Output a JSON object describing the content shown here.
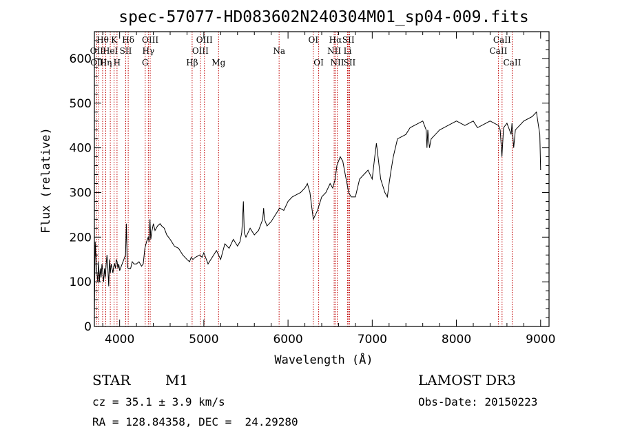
{
  "chart_data": {
    "type": "line",
    "title": "spec-57077-HD083602N240304M01_sp04-009.fits",
    "xlabel": "Wavelength (Å)",
    "ylabel": "Flux (relative)",
    "xlim": [
      3700,
      9100
    ],
    "ylim": [
      0,
      660
    ],
    "xticks": [
      4000,
      5000,
      6000,
      7000,
      8000,
      9000
    ],
    "yticks": [
      0,
      100,
      200,
      300,
      400,
      500,
      600
    ],
    "grid": false,
    "series": [
      {
        "values_x": [
          3700,
          3710,
          3720,
          3730,
          3740,
          3750,
          3760,
          3770,
          3780,
          3790,
          3800,
          3810,
          3820,
          3830,
          3840,
          3850,
          3860,
          3870,
          3880,
          3890,
          3900,
          3910,
          3920,
          3930,
          3940,
          3950,
          3960,
          3970,
          3980,
          3990,
          4000,
          4030,
          4050,
          4070,
          4080,
          4090,
          4100,
          4130,
          4150,
          4170,
          4200,
          4230,
          4260,
          4280,
          4300,
          4320,
          4340,
          4350,
          4360,
          4370,
          4380,
          4400,
          4420,
          4450,
          4480,
          4500,
          4530,
          4560,
          4600,
          4650,
          4700,
          4750,
          4800,
          4830,
          4850,
          4870,
          4900,
          4950,
          4980,
          5000,
          5050,
          5100,
          5150,
          5200,
          5250,
          5300,
          5350,
          5400,
          5430,
          5450,
          5460,
          5470,
          5480,
          5500,
          5550,
          5600,
          5650,
          5700,
          5710,
          5720,
          5750,
          5800,
          5850,
          5900,
          5950,
          6000,
          6050,
          6100,
          6150,
          6200,
          6230,
          6260,
          6300,
          6350,
          6400,
          6450,
          6500,
          6530,
          6560,
          6580,
          6600,
          6620,
          6650,
          6680,
          6700,
          6720,
          6750,
          6800,
          6850,
          6900,
          6950,
          7000,
          7030,
          7050,
          7100,
          7150,
          7180,
          7200,
          7220,
          7250,
          7300,
          7350,
          7400,
          7450,
          7500,
          7550,
          7600,
          7640,
          7650,
          7660,
          7680,
          7700,
          7750,
          7800,
          7850,
          7900,
          7950,
          8000,
          8050,
          8100,
          8150,
          8200,
          8250,
          8300,
          8350,
          8400,
          8450,
          8500,
          8520,
          8540,
          8560,
          8600,
          8650,
          8660,
          8680,
          8700,
          8750,
          8800,
          8850,
          8900,
          8950,
          8970,
          8990,
          9000
        ],
        "values_y": [
          30,
          190,
          150,
          120,
          100,
          145,
          100,
          130,
          110,
          140,
          120,
          100,
          130,
          110,
          140,
          160,
          130,
          90,
          150,
          120,
          140,
          130,
          120,
          135,
          140,
          130,
          150,
          145,
          130,
          140,
          125,
          140,
          150,
          160,
          230,
          140,
          130,
          130,
          145,
          140,
          140,
          145,
          135,
          140,
          175,
          190,
          200,
          190,
          240,
          195,
          210,
          230,
          215,
          225,
          230,
          225,
          220,
          205,
          195,
          180,
          175,
          160,
          150,
          145,
          155,
          150,
          155,
          160,
          155,
          165,
          140,
          155,
          170,
          150,
          185,
          175,
          195,
          180,
          190,
          210,
          240,
          280,
          210,
          200,
          220,
          205,
          215,
          240,
          265,
          240,
          225,
          235,
          250,
          265,
          260,
          280,
          290,
          295,
          300,
          310,
          320,
          300,
          240,
          260,
          290,
          300,
          320,
          310,
          330,
          360,
          370,
          380,
          370,
          340,
          320,
          300,
          290,
          290,
          330,
          340,
          350,
          330,
          380,
          410,
          330,
          300,
          290,
          320,
          345,
          380,
          420,
          425,
          430,
          445,
          450,
          455,
          460,
          440,
          400,
          440,
          400,
          420,
          430,
          440,
          445,
          450,
          455,
          460,
          455,
          450,
          455,
          460,
          445,
          450,
          455,
          460,
          455,
          450,
          440,
          380,
          445,
          455,
          430,
          455,
          400,
          440,
          450,
          460,
          465,
          470,
          480,
          455,
          430,
          350
        ]
      }
    ],
    "spectral_lines": [
      {
        "label": "Hθ",
        "wavelength": 3798,
        "row": 1
      },
      {
        "label": "OII",
        "wavelength": 3727,
        "row": 2
      },
      {
        "label": "OIII",
        "wavelength": 3750,
        "row": 3
      },
      {
        "label": "Hη",
        "wavelength": 3835,
        "row": 3
      },
      {
        "label": "K",
        "wavelength": 3934,
        "row": 1
      },
      {
        "label": "HeI",
        "wavelength": 3889,
        "row": 2
      },
      {
        "label": "H",
        "wavelength": 3969,
        "row": 3
      },
      {
        "label": "SII",
        "wavelength": 4072,
        "row": 2
      },
      {
        "label": "Hδ",
        "wavelength": 4102,
        "row": 1
      },
      {
        "label": "G",
        "wavelength": 4304,
        "row": 3
      },
      {
        "label": "Hγ",
        "wavelength": 4341,
        "row": 2
      },
      {
        "label": "OIII",
        "wavelength": 4363,
        "row": 1
      },
      {
        "label": "Hβ",
        "wavelength": 4861,
        "row": 3
      },
      {
        "label": "OIII",
        "wavelength": 4959,
        "row": 2
      },
      {
        "label": "OIII",
        "wavelength": 5007,
        "row": 1
      },
      {
        "label": "Mg",
        "wavelength": 5175,
        "row": 3
      },
      {
        "label": "Na",
        "wavelength": 5894,
        "row": 2
      },
      {
        "label": "OI",
        "wavelength": 6300,
        "row": 1
      },
      {
        "label": "OI",
        "wavelength": 6364,
        "row": 3
      },
      {
        "label": "NII",
        "wavelength": 6548,
        "row": 2
      },
      {
        "label": "Hα",
        "wavelength": 6563,
        "row": 1
      },
      {
        "label": "NII",
        "wavelength": 6584,
        "row": 3
      },
      {
        "label": "SII",
        "wavelength": 6717,
        "row": 1
      },
      {
        "label": "Li",
        "wavelength": 6707,
        "row": 2
      },
      {
        "label": "SII",
        "wavelength": 6731,
        "row": 3
      },
      {
        "label": "CaII",
        "wavelength": 8498,
        "row": 2
      },
      {
        "label": "CaII",
        "wavelength": 8542,
        "row": 1
      },
      {
        "label": "CaII",
        "wavelength": 8662,
        "row": 3
      }
    ]
  },
  "info": {
    "object_type": "STAR",
    "subclass": "M1",
    "survey": "LAMOST DR3",
    "cz": "cz = 35.1 ± 3.9 km/s",
    "obs_date": "Obs-Date: 20150223",
    "radec": "RA = 128.84358, DEC =  24.29280"
  },
  "colors": {
    "spectrum": "#000000",
    "line_markers": "#c00000"
  }
}
